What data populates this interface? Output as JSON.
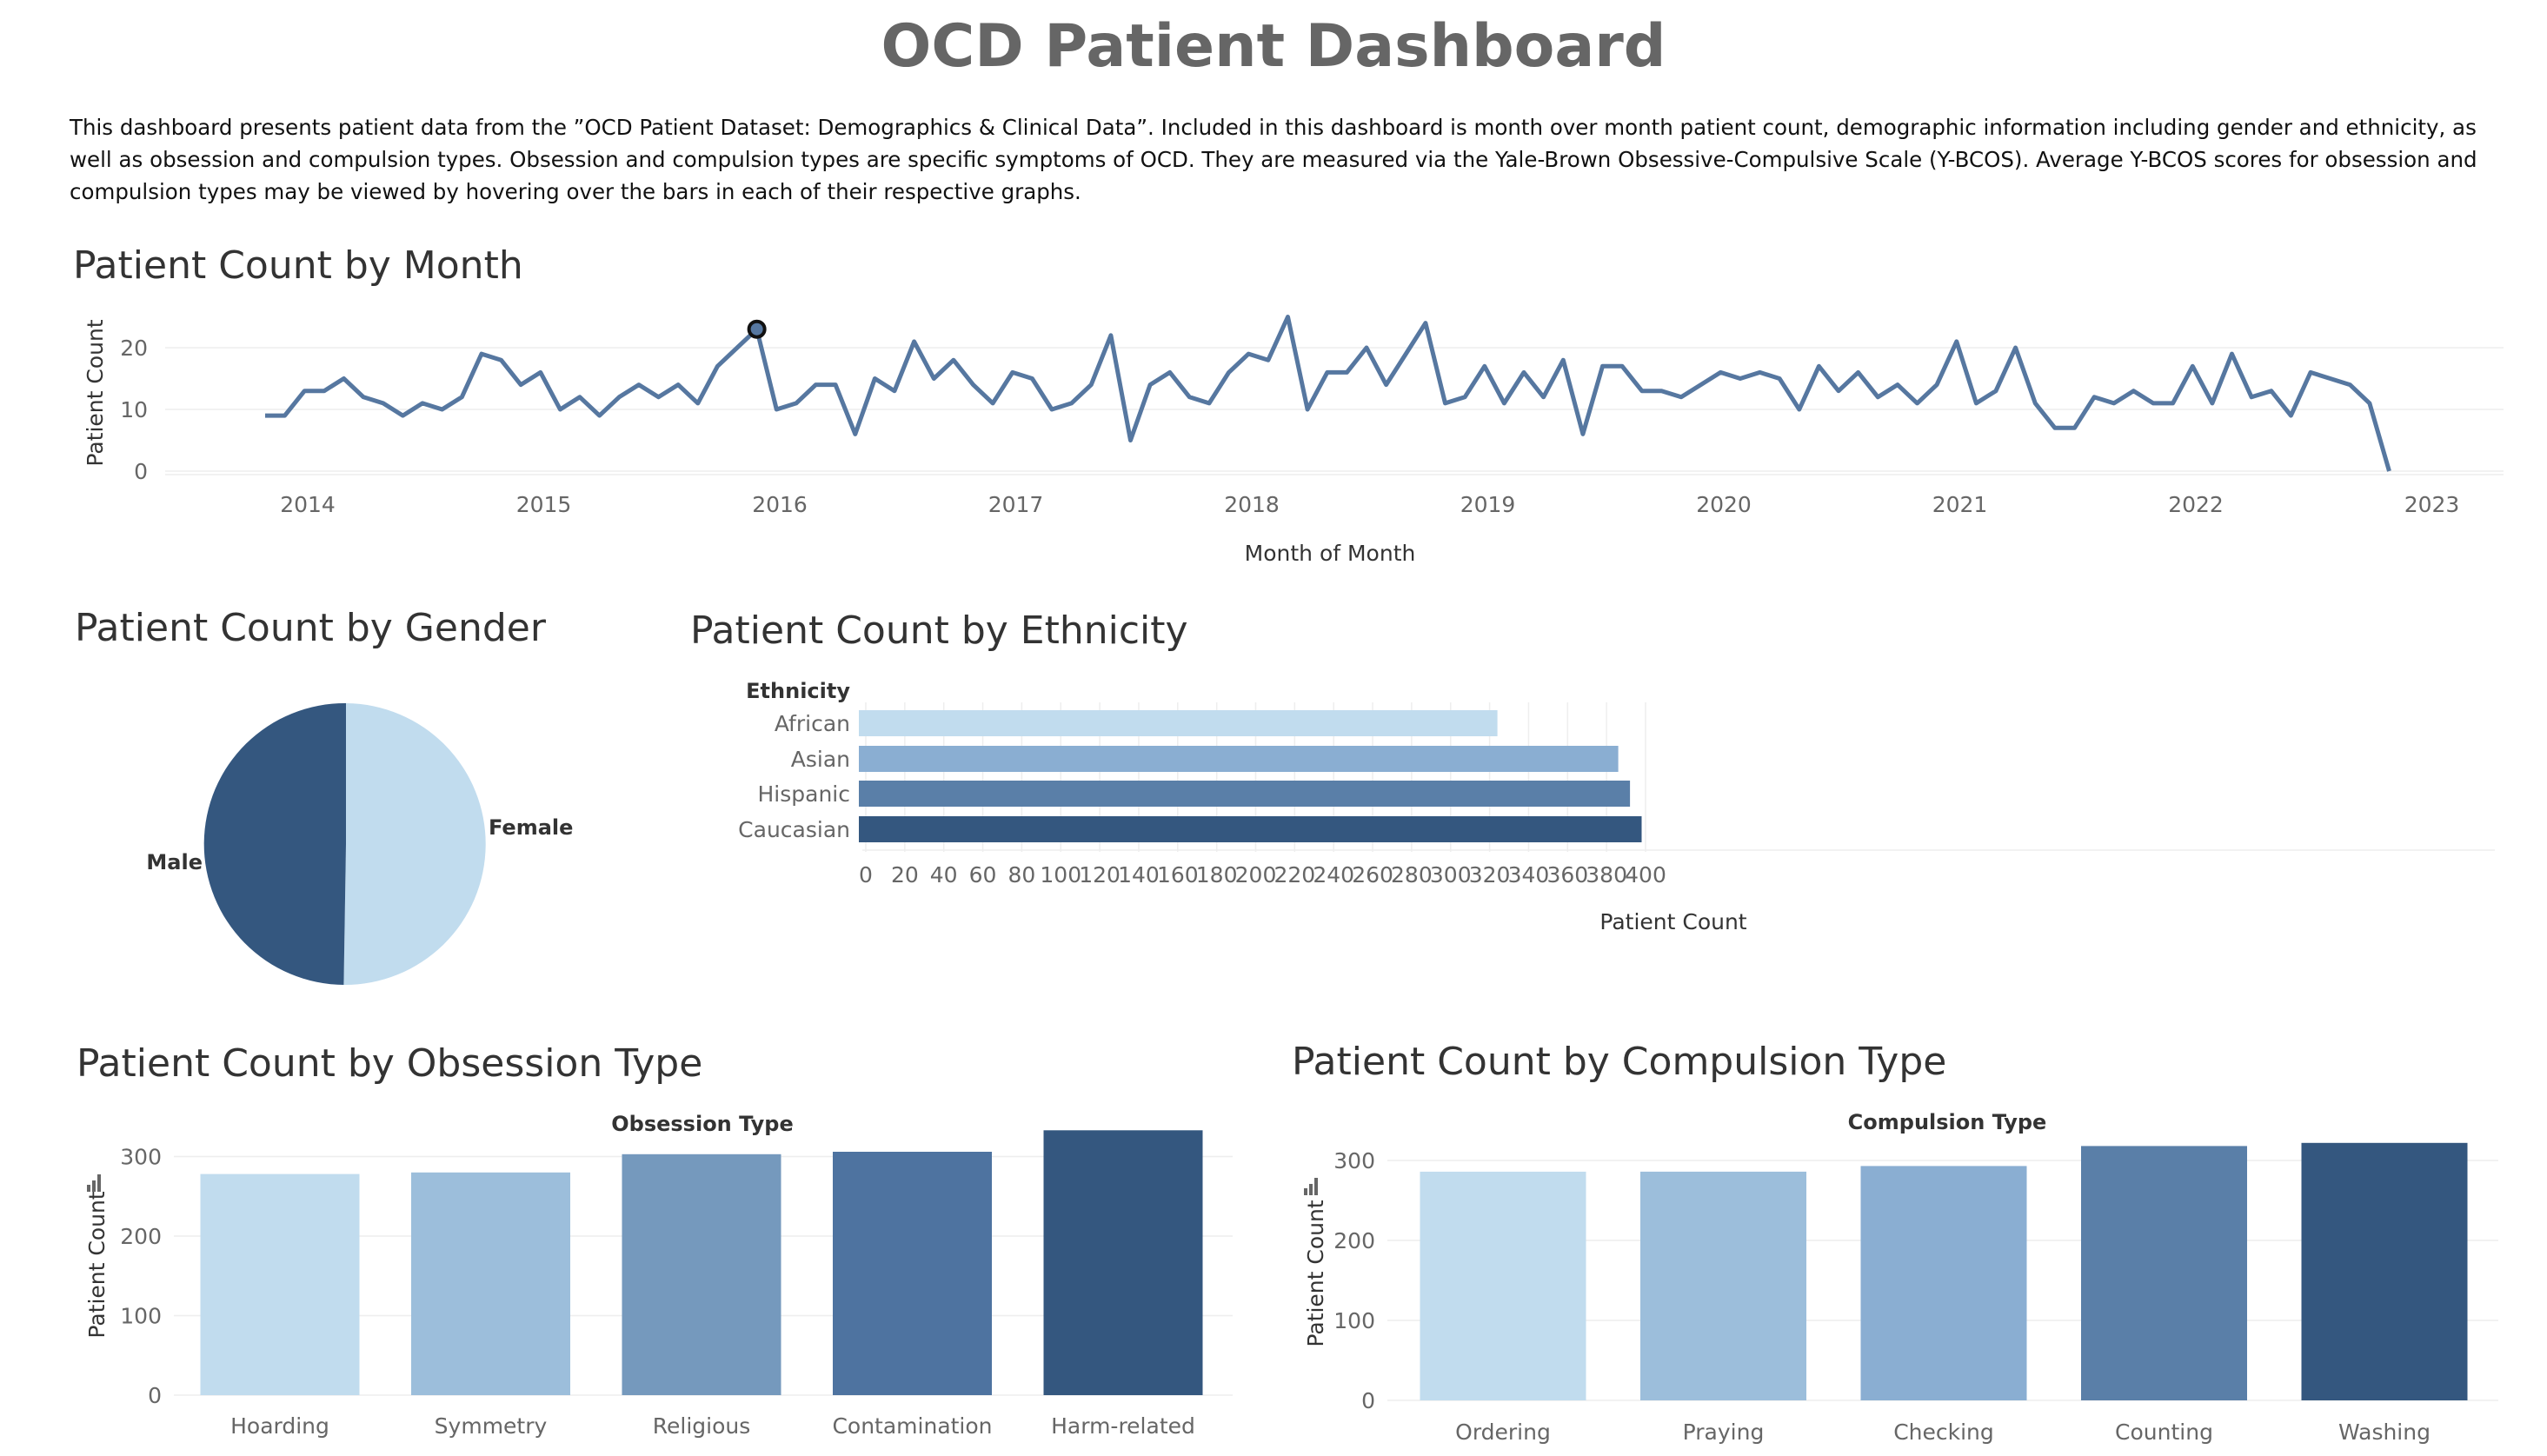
{
  "dashboard": {
    "title": "OCD Patient Dashboard",
    "description": "This dashboard presents patient data from the ”OCD Patient Dataset: Demographics & Clinical Data”. Included in this dashboard is month over month patient count, demographic information including gender and ethnicity, as well as obsession and compulsion types. Obsession and compulsion types are specific symptoms of OCD. They are measured via the Yale-Brown Obsessive-Compulsive Scale (Y-BCOS). Average Y-BCOS scores for obsession and compulsion types may be viewed by hovering over the bars in each of their respective graphs."
  },
  "colors": {
    "line": "#5677a0",
    "blue1": "#c1dcee",
    "blue2": "#9cbedb",
    "blue3": "#8aaed2",
    "blue4": "#7599bd",
    "blue5": "#5a7fa8",
    "blue6": "#4e73a0",
    "blue7": "#34577f"
  },
  "chart_data": [
    {
      "id": "month",
      "type": "line",
      "title": "Patient Count by Month",
      "xlabel": "Month of Month",
      "ylabel": "Patient Count",
      "x_start": "2013-11",
      "x_ticks": [
        "2014",
        "2015",
        "2016",
        "2017",
        "2018",
        "2019",
        "2020",
        "2021",
        "2022",
        "2023"
      ],
      "y_ticks": [
        0,
        10,
        20
      ],
      "ylim": [
        0,
        27
      ],
      "highlight_index": 25,
      "values": [
        9,
        9,
        13,
        13,
        15,
        12,
        11,
        9,
        11,
        10,
        12,
        19,
        18,
        14,
        16,
        10,
        12,
        9,
        12,
        14,
        12,
        14,
        11,
        17,
        20,
        23,
        10,
        11,
        14,
        14,
        6,
        15,
        13,
        21,
        15,
        18,
        14,
        11,
        16,
        15,
        10,
        11,
        14,
        22,
        5,
        14,
        16,
        12,
        11,
        16,
        19,
        18,
        25,
        10,
        16,
        16,
        20,
        14,
        19,
        24,
        11,
        12,
        17,
        11,
        16,
        12,
        18,
        6,
        17,
        17,
        13,
        13,
        12,
        14,
        16,
        15,
        16,
        15,
        10,
        17,
        13,
        16,
        12,
        14,
        11,
        14,
        21,
        11,
        13,
        20,
        11,
        7,
        7,
        12,
        11,
        13,
        11,
        11,
        17,
        11,
        19,
        12,
        13,
        9,
        16,
        15,
        14,
        11,
        0
      ]
    },
    {
      "id": "gender",
      "type": "pie",
      "title": "Patient Count by Gender",
      "labels": [
        "Female",
        "Male"
      ],
      "values": [
        500,
        495
      ]
    },
    {
      "id": "ethnicity",
      "type": "bar",
      "orientation": "horizontal",
      "title": "Patient Count by Ethnicity",
      "header": "Ethnicity",
      "xlabel": "Patient Count",
      "categories": [
        "African",
        "Asian",
        "Hispanic",
        "Caucasian"
      ],
      "values": [
        324,
        386,
        392,
        398
      ],
      "x_ticks": [
        0,
        20,
        40,
        60,
        80,
        100,
        120,
        140,
        160,
        180,
        200,
        220,
        240,
        260,
        280,
        300,
        320,
        340,
        360,
        380,
        400
      ],
      "xlim": [
        0,
        420
      ]
    },
    {
      "id": "obsession",
      "type": "bar",
      "title": "Patient Count by Obsession Type",
      "header": "Obsession Type",
      "ylabel": "Patient Count",
      "categories": [
        "Hoarding",
        "Symmetry",
        "Religious",
        "Contamination",
        "Harm-related"
      ],
      "values": [
        278,
        280,
        303,
        306,
        333
      ],
      "y_ticks": [
        0,
        100,
        200,
        300
      ],
      "ylim": [
        0,
        350
      ]
    },
    {
      "id": "compulsion",
      "type": "bar",
      "title": "Patient Count by Compulsion Type",
      "header": "Compulsion Type",
      "ylabel": "Patient Count",
      "categories": [
        "Ordering",
        "Praying",
        "Checking",
        "Counting",
        "Washing"
      ],
      "values": [
        286,
        286,
        293,
        318,
        322
      ],
      "y_ticks": [
        0,
        100,
        200,
        300
      ],
      "ylim": [
        0,
        340
      ]
    }
  ]
}
